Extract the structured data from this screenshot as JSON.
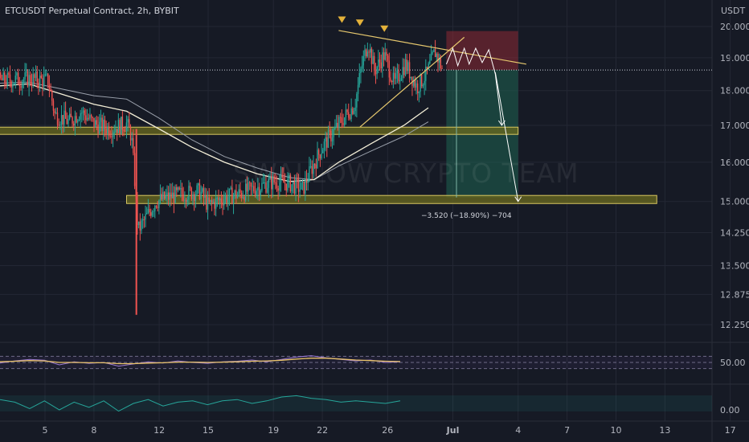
{
  "header": {
    "symbol": "ETCUSDT Perpetual Contract",
    "interval": "2h",
    "exchange": "BYBIT",
    "currency": "USDT"
  },
  "watermark": "SWALLOW CRYPTO TEAM",
  "measure_label": "−3.520 (−18.90%) −704",
  "colors": {
    "background": "#161a25",
    "candle_up": "#26a69a",
    "candle_down": "#ef5350",
    "ema_fast": "#ffffff",
    "ema_slow": "#d7c9a0",
    "trendline": "#e6c86e",
    "support_zone": "#6b6b1f",
    "stop_zone": "#8e2a35",
    "target_zone": "#1e5e4f"
  },
  "chart_data": [
    {
      "type": "candlestick",
      "title": "ETCUSDT Perpetual Contract, 2h, BYBIT",
      "y_axis": {
        "scale": "log",
        "ticks": [
          20.0,
          19.0,
          18.0,
          17.0,
          16.0,
          15.0,
          14.25,
          13.5,
          12.875,
          12.25
        ],
        "tick_labels": [
          "20.000",
          "19.000",
          "18.000",
          "17.000",
          "16.000",
          "15.000",
          "14.250",
          "13.500",
          "12.875",
          "12.250"
        ]
      },
      "x_axis": {
        "ticks": [
          "5",
          "8",
          "12",
          "15",
          "19",
          "22",
          "26",
          "Jul",
          "4",
          "7",
          "10",
          "13",
          "17"
        ],
        "tick_values": [
          5,
          8,
          12,
          15,
          19,
          22,
          26,
          30,
          34,
          37,
          40,
          43,
          47
        ]
      },
      "current_price": 18.62,
      "price_path": [
        [
          1,
          18.2
        ],
        [
          2.5,
          18.3
        ],
        [
          4,
          18.35
        ],
        [
          5.2,
          18.3
        ],
        [
          5.6,
          17.3
        ],
        [
          6.5,
          17.1
        ],
        [
          7.2,
          17.4
        ],
        [
          8,
          17.05
        ],
        [
          9,
          16.9
        ],
        [
          10,
          17.05
        ],
        [
          10.3,
          16.7
        ],
        [
          10.7,
          14.3
        ],
        [
          11.1,
          14.55
        ],
        [
          11.8,
          15.0
        ],
        [
          12.5,
          15.1
        ],
        [
          13.5,
          15.2
        ],
        [
          14.5,
          15.25
        ],
        [
          15,
          14.9
        ],
        [
          16,
          15.1
        ],
        [
          17,
          15.2
        ],
        [
          18,
          15.35
        ],
        [
          19,
          15.5
        ],
        [
          20,
          15.45
        ],
        [
          20.8,
          15.3
        ],
        [
          21.3,
          15.8
        ],
        [
          22,
          16.4
        ],
        [
          22.8,
          16.9
        ],
        [
          23.3,
          17.2
        ],
        [
          24,
          17.6
        ],
        [
          24.4,
          18.7
        ],
        [
          24.8,
          19.5
        ],
        [
          25.2,
          18.6
        ],
        [
          25.8,
          19.1
        ],
        [
          26.4,
          18.2
        ],
        [
          27.1,
          18.8
        ],
        [
          27.8,
          18.1
        ],
        [
          28.4,
          18.5
        ],
        [
          28.9,
          19.2
        ],
        [
          29.4,
          18.6
        ]
      ],
      "wick_low": {
        "x": 10.6,
        "y": 12.45
      },
      "ema_fast": [
        [
          1,
          18.1
        ],
        [
          4,
          18.2
        ],
        [
          6,
          17.9
        ],
        [
          8,
          17.6
        ],
        [
          10,
          17.4
        ],
        [
          12,
          16.9
        ],
        [
          14,
          16.4
        ],
        [
          16,
          16.0
        ],
        [
          18,
          15.7
        ],
        [
          20,
          15.5
        ],
        [
          21.5,
          15.55
        ],
        [
          23,
          16.0
        ],
        [
          25,
          16.5
        ],
        [
          27,
          17.0
        ],
        [
          28.5,
          17.5
        ]
      ],
      "ema_slow": [
        [
          1,
          18.2
        ],
        [
          4,
          18.25
        ],
        [
          6,
          18.05
        ],
        [
          8,
          17.85
        ],
        [
          10,
          17.75
        ],
        [
          12,
          17.2
        ],
        [
          14,
          16.6
        ],
        [
          16,
          16.15
        ],
        [
          18,
          15.85
        ],
        [
          20,
          15.6
        ],
        [
          21.5,
          15.55
        ],
        [
          23,
          15.9
        ],
        [
          25,
          16.3
        ],
        [
          27,
          16.7
        ],
        [
          28.5,
          17.1
        ]
      ],
      "rsi": {
        "label": "50.00",
        "upper": 70,
        "lower": 30,
        "values": [
          48,
          55,
          60,
          57,
          42,
          52,
          47,
          50,
          38,
          45,
          52,
          48,
          55,
          50,
          47,
          52,
          54,
          58,
          52,
          60,
          68,
          72,
          65,
          60,
          55,
          58,
          50,
          52
        ],
        "signal": [
          52,
          54,
          56,
          55,
          50,
          50,
          49,
          49,
          46,
          46,
          48,
          49,
          51,
          51,
          50,
          51,
          52,
          54,
          55,
          57,
          61,
          64,
          64,
          61,
          58,
          56,
          54,
          53
        ]
      },
      "macd": {
        "label": "0.00",
        "values": [
          0.3,
          0.1,
          -0.4,
          0.2,
          -0.5,
          0.1,
          -0.3,
          0.2,
          -0.6,
          0.0,
          0.3,
          -0.2,
          0.1,
          0.2,
          -0.1,
          0.2,
          0.3,
          0.0,
          0.2,
          0.5,
          0.6,
          0.4,
          0.3,
          0.1,
          0.2,
          0.1,
          0.0,
          0.2
        ]
      },
      "zones": {
        "resistance_line": {
          "from": [
            23.0,
            19.87
          ],
          "to": [
            34.5,
            18.8
          ]
        },
        "ascending_line": {
          "from": [
            24.3,
            16.95
          ],
          "to": [
            30.7,
            19.65
          ]
        },
        "support_1": {
          "from": 1.0,
          "to": 34.0,
          "low": 16.75,
          "high": 16.95
        },
        "support_2": {
          "from": 10.0,
          "to": 42.5,
          "low": 14.95,
          "high": 15.15
        },
        "stop": {
          "from": 29.6,
          "to": 34.0,
          "low": 18.62,
          "high": 19.85
        },
        "target": {
          "from": 29.6,
          "to": 34.0,
          "low": 15.1,
          "high": 18.62
        }
      },
      "markers": [
        {
          "x": 23.2,
          "y": 20.2
        },
        {
          "x": 24.3,
          "y": 20.1
        },
        {
          "x": 25.8,
          "y": 19.9
        }
      ],
      "projection": [
        [
          29.6,
          18.8
        ],
        [
          30.0,
          19.3
        ],
        [
          30.3,
          18.75
        ],
        [
          30.7,
          19.3
        ],
        [
          31.0,
          18.8
        ],
        [
          31.4,
          19.3
        ],
        [
          31.8,
          18.85
        ],
        [
          32.2,
          19.25
        ],
        [
          32.6,
          18.5
        ],
        [
          33.0,
          17.0
        ]
      ],
      "projection_2": [
        [
          32.6,
          18.55
        ],
        [
          34.0,
          15.0
        ]
      ]
    }
  ]
}
